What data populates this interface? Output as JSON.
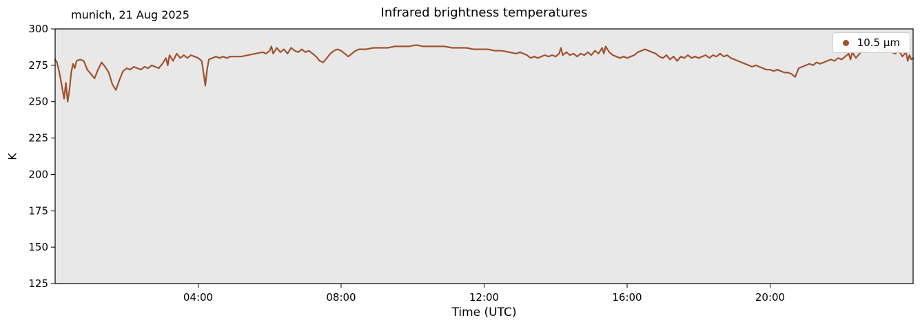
{
  "header": {
    "subtitle": "munich, 21 Aug 2025",
    "title": "Infrared brightness temperatures"
  },
  "colors": {
    "line": "#A0522D",
    "plot_bg": "#e8e8e8",
    "page_bg": "#ffffff",
    "spine": "#000000",
    "legend_border": "#cccccc"
  },
  "chart_data": {
    "type": "line",
    "title": "Infrared brightness temperatures",
    "subtitle": "munich, 21 Aug 2025",
    "xlabel": "Time (UTC)",
    "ylabel": "K",
    "xlim": [
      0,
      24
    ],
    "ylim": [
      125,
      300
    ],
    "grid": false,
    "legend_position": "upper right",
    "x_ticks": {
      "values": [
        4,
        8,
        12,
        16,
        20
      ],
      "labels": [
        "04:00",
        "08:00",
        "12:00",
        "16:00",
        "20:00"
      ]
    },
    "y_ticks": {
      "values": [
        125,
        150,
        175,
        200,
        225,
        250,
        275,
        300
      ],
      "labels": [
        "125",
        "150",
        "175",
        "200",
        "225",
        "250",
        "275",
        "300"
      ]
    },
    "series": [
      {
        "name": "10.5 μm",
        "color": "#A0522D",
        "marker": "dot",
        "x": [
          0.0,
          0.05,
          0.1,
          0.15,
          0.2,
          0.25,
          0.3,
          0.35,
          0.4,
          0.45,
          0.5,
          0.55,
          0.6,
          0.7,
          0.8,
          0.9,
          1.0,
          1.1,
          1.2,
          1.3,
          1.4,
          1.5,
          1.6,
          1.7,
          1.8,
          1.9,
          2.0,
          2.1,
          2.2,
          2.3,
          2.4,
          2.5,
          2.6,
          2.7,
          2.8,
          2.9,
          3.0,
          3.1,
          3.15,
          3.2,
          3.3,
          3.4,
          3.5,
          3.6,
          3.7,
          3.8,
          3.9,
          4.0,
          4.1,
          4.15,
          4.2,
          4.25,
          4.3,
          4.4,
          4.5,
          4.6,
          4.7,
          4.8,
          4.9,
          5.0,
          5.2,
          5.4,
          5.6,
          5.8,
          5.9,
          6.0,
          6.05,
          6.1,
          6.2,
          6.3,
          6.4,
          6.5,
          6.6,
          6.7,
          6.8,
          6.9,
          7.0,
          7.1,
          7.2,
          7.3,
          7.4,
          7.5,
          7.6,
          7.7,
          7.8,
          7.9,
          8.0,
          8.1,
          8.2,
          8.3,
          8.4,
          8.5,
          8.7,
          8.9,
          9.1,
          9.3,
          9.5,
          9.7,
          9.9,
          10.1,
          10.3,
          10.5,
          10.7,
          10.9,
          11.1,
          11.3,
          11.5,
          11.7,
          11.9,
          12.1,
          12.3,
          12.5,
          12.7,
          12.9,
          13.0,
          13.1,
          13.2,
          13.3,
          13.4,
          13.5,
          13.6,
          13.7,
          13.8,
          13.9,
          14.0,
          14.1,
          14.15,
          14.2,
          14.3,
          14.4,
          14.5,
          14.6,
          14.7,
          14.8,
          14.9,
          15.0,
          15.1,
          15.2,
          15.3,
          15.35,
          15.4,
          15.5,
          15.6,
          15.7,
          15.8,
          15.9,
          16.0,
          16.1,
          16.2,
          16.3,
          16.4,
          16.5,
          16.6,
          16.7,
          16.8,
          16.9,
          17.0,
          17.1,
          17.2,
          17.3,
          17.4,
          17.5,
          17.6,
          17.7,
          17.8,
          17.9,
          18.0,
          18.1,
          18.2,
          18.3,
          18.4,
          18.5,
          18.6,
          18.7,
          18.8,
          18.9,
          19.0,
          19.1,
          19.2,
          19.3,
          19.4,
          19.5,
          19.6,
          19.7,
          19.8,
          19.9,
          20.0,
          20.1,
          20.2,
          20.3,
          20.4,
          20.5,
          20.6,
          20.7,
          20.75,
          20.8,
          20.9,
          21.0,
          21.1,
          21.2,
          21.3,
          21.4,
          21.5,
          21.6,
          21.7,
          21.8,
          21.9,
          22.0,
          22.1,
          22.2,
          22.25,
          22.3,
          22.4,
          22.5,
          22.6,
          22.7,
          22.8,
          22.9,
          23.0,
          23.05,
          23.1,
          23.2,
          23.3,
          23.4,
          23.5,
          23.6,
          23.7,
          23.8,
          23.85,
          23.9,
          23.95,
          24.0
        ],
        "y": [
          279,
          277,
          272,
          266,
          259,
          252,
          263,
          250,
          258,
          270,
          276,
          273,
          278,
          279,
          278,
          272,
          269,
          266,
          272,
          277,
          274,
          270,
          262,
          258,
          265,
          271,
          273,
          272,
          274,
          273,
          272,
          274,
          273,
          275,
          274,
          273,
          276,
          280,
          275,
          282,
          278,
          283,
          280,
          282,
          280,
          282,
          281,
          280,
          278,
          270,
          261,
          272,
          279,
          280,
          281,
          280,
          281,
          280,
          281,
          281,
          281,
          282,
          283,
          284,
          283,
          285,
          288,
          283,
          287,
          284,
          286,
          283,
          287,
          285,
          284,
          286,
          284,
          285,
          283,
          281,
          278,
          277,
          280,
          283,
          285,
          286,
          285,
          283,
          281,
          283,
          285,
          286,
          286,
          287,
          287,
          287,
          288,
          288,
          288,
          289,
          288,
          288,
          288,
          288,
          287,
          287,
          287,
          286,
          286,
          286,
          285,
          285,
          284,
          283,
          284,
          283,
          282,
          280,
          281,
          280,
          281,
          282,
          281,
          282,
          281,
          283,
          287,
          282,
          284,
          282,
          283,
          281,
          283,
          282,
          284,
          282,
          285,
          283,
          287,
          283,
          288,
          284,
          282,
          281,
          280,
          281,
          280,
          281,
          282,
          284,
          285,
          286,
          285,
          284,
          283,
          281,
          280,
          282,
          279,
          281,
          278,
          281,
          280,
          282,
          280,
          281,
          280,
          281,
          282,
          280,
          282,
          281,
          283,
          281,
          282,
          280,
          279,
          278,
          277,
          276,
          275,
          274,
          275,
          274,
          273,
          272,
          272,
          271,
          272,
          271,
          270,
          270,
          269,
          267,
          270,
          273,
          274,
          275,
          276,
          275,
          277,
          276,
          277,
          278,
          279,
          278,
          280,
          279,
          281,
          283,
          279,
          284,
          280,
          283,
          285,
          284,
          286,
          287,
          288,
          284,
          287,
          285,
          286,
          284,
          283,
          285,
          281,
          284,
          278,
          282,
          279,
          280
        ]
      }
    ]
  }
}
